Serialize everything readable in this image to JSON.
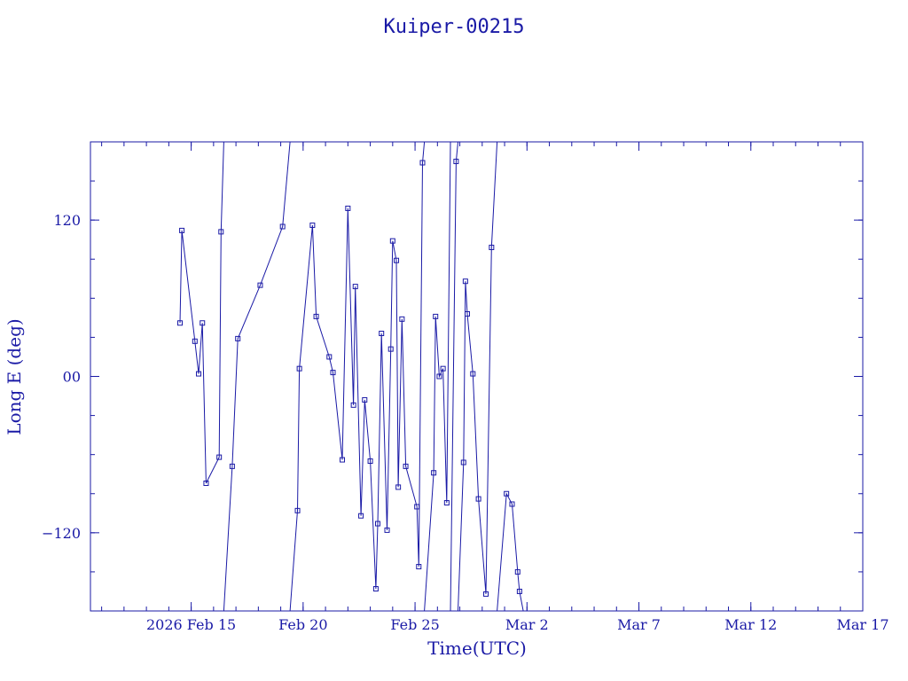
{
  "chart_data": {
    "type": "line",
    "title": "Kuiper-00215",
    "xlabel": "Time(UTC)",
    "ylabel": "Long E (deg)",
    "x_ticks": [
      {
        "date": "2026-02-15",
        "label": "2026 Feb 15"
      },
      {
        "date": "2026-02-20",
        "label": "Feb 20"
      },
      {
        "date": "2026-02-25",
        "label": "Feb 25"
      },
      {
        "date": "2026-03-02",
        "label": "Mar  2"
      },
      {
        "date": "2026-03-07",
        "label": "Mar  7"
      },
      {
        "date": "2026-03-12",
        "label": "Mar 12"
      },
      {
        "date": "2026-03-17",
        "label": "Mar 17"
      }
    ],
    "y_ticks": [
      {
        "value": 120,
        "label": "120"
      },
      {
        "value": 0,
        "label": "00"
      },
      {
        "value": -120,
        "label": "−120"
      }
    ],
    "xlim": [
      "2026-02-10T12:00",
      "2026-03-17T00:00"
    ],
    "ylim": [
      -180,
      180
    ],
    "grid": false,
    "color": "#1a1aa6",
    "series": [
      {
        "values": [
          [
            "2026-02-14T12:00",
            41
          ],
          [
            "2026-02-14T14:00",
            112
          ],
          [
            "2026-02-15T04:00",
            27
          ],
          [
            "2026-02-15T08:00",
            2
          ],
          [
            "2026-02-15T12:00",
            41
          ],
          [
            "2026-02-15T16:00",
            -82
          ],
          [
            "2026-02-16T06:00",
            -62
          ],
          [
            "2026-02-16T08:00",
            111
          ],
          [
            "2026-02-16T11:00",
            180
          ]
        ]
      },
      {
        "values": [
          [
            "2026-02-16T11:00",
            -180
          ],
          [
            "2026-02-16T20:00",
            -69
          ],
          [
            "2026-02-17T02:00",
            29
          ],
          [
            "2026-02-18T02:00",
            70
          ],
          [
            "2026-02-19T02:00",
            115
          ],
          [
            "2026-02-19T10:00",
            180
          ]
        ]
      },
      {
        "values": [
          [
            "2026-02-19T10:00",
            -180
          ],
          [
            "2026-02-19T18:00",
            -103
          ],
          [
            "2026-02-19T20:00",
            6
          ],
          [
            "2026-02-20T10:00",
            116
          ],
          [
            "2026-02-20T14:00",
            46
          ],
          [
            "2026-02-21T04:00",
            15
          ],
          [
            "2026-02-21T08:00",
            3
          ],
          [
            "2026-02-21T18:00",
            -64
          ],
          [
            "2026-02-22T00:00",
            129
          ],
          [
            "2026-02-22T06:00",
            -22
          ],
          [
            "2026-02-22T08:00",
            69
          ],
          [
            "2026-02-22T14:00",
            -107
          ],
          [
            "2026-02-22T18:00",
            -18
          ],
          [
            "2026-02-23T00:00",
            -65
          ],
          [
            "2026-02-23T06:00",
            -163
          ],
          [
            "2026-02-23T08:00",
            -113
          ],
          [
            "2026-02-23T12:00",
            33
          ],
          [
            "2026-02-23T18:00",
            -118
          ],
          [
            "2026-02-23T22:00",
            21
          ],
          [
            "2026-02-24T00:00",
            104
          ],
          [
            "2026-02-24T04:00",
            89
          ],
          [
            "2026-02-24T06:00",
            -85
          ],
          [
            "2026-02-24T10:00",
            44
          ],
          [
            "2026-02-24T14:00",
            -69
          ],
          [
            "2026-02-25T02:00",
            -100
          ],
          [
            "2026-02-25T04:00",
            -146
          ],
          [
            "2026-02-25T08:00",
            164
          ],
          [
            "2026-02-25T10:00",
            180
          ]
        ]
      },
      {
        "values": [
          [
            "2026-02-25T10:00",
            -180
          ],
          [
            "2026-02-25T20:00",
            -74
          ],
          [
            "2026-02-25T22:00",
            46
          ],
          [
            "2026-02-26T02:00",
            0
          ],
          [
            "2026-02-26T06:00",
            6
          ],
          [
            "2026-02-26T10:00",
            -97
          ],
          [
            "2026-02-26T14:00",
            180
          ]
        ]
      },
      {
        "values": [
          [
            "2026-02-26T14:00",
            -180
          ],
          [
            "2026-02-26T20:00",
            165
          ],
          [
            "2026-02-26T22:00",
            180
          ]
        ]
      },
      {
        "values": [
          [
            "2026-02-26T22:00",
            -180
          ],
          [
            "2026-02-27T04:00",
            -66
          ],
          [
            "2026-02-27T06:00",
            73
          ],
          [
            "2026-02-27T08:00",
            48
          ],
          [
            "2026-02-27T14:00",
            2
          ],
          [
            "2026-02-27T20:00",
            -94
          ],
          [
            "2026-02-28T04:00",
            -167
          ],
          [
            "2026-02-28T10:00",
            99
          ],
          [
            "2026-02-28T16:00",
            180
          ]
        ]
      },
      {
        "values": [
          [
            "2026-02-28T16:00",
            -180
          ],
          [
            "2026-03-01T02:00",
            -90
          ],
          [
            "2026-03-01T08:00",
            -98
          ],
          [
            "2026-03-01T14:00",
            -150
          ],
          [
            "2026-03-01T16:00",
            -165
          ],
          [
            "2026-03-01T20:00",
            -180
          ]
        ]
      }
    ]
  }
}
